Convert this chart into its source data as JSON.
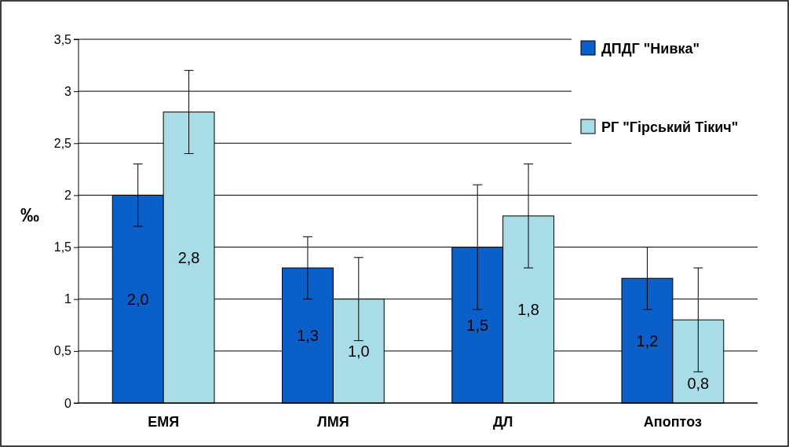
{
  "chart_data": {
    "type": "bar",
    "ylabel": "‰",
    "categories": [
      "ЕМЯ",
      "ЛМЯ",
      "ДЛ",
      "Апоптоз"
    ],
    "series": [
      {
        "name": "ДПДГ \"Нивка\"",
        "color": "#0a5fc8",
        "values": [
          2.0,
          1.3,
          1.5,
          1.2
        ],
        "errors": [
          0.3,
          0.3,
          0.6,
          0.3
        ],
        "value_labels": [
          "2,0",
          "1,3",
          "1,5",
          "1,2"
        ]
      },
      {
        "name": "РГ \"Гірський Тікич\"",
        "color": "#a8dce6",
        "values": [
          2.8,
          1.0,
          1.8,
          0.8
        ],
        "errors": [
          0.4,
          0.4,
          0.5,
          0.5
        ],
        "value_labels": [
          "2,8",
          "1,0",
          "1,8",
          "0,8"
        ]
      }
    ],
    "ylim": [
      0,
      3.5
    ],
    "yticks": [
      0,
      {
        "value": 0.5,
        "label": "0,5"
      },
      1,
      {
        "value": 1.5,
        "label": "1,5"
      },
      2,
      {
        "value": 2.5,
        "label": "2,5"
      },
      3,
      {
        "value": 3.5,
        "label": "3,5"
      }
    ],
    "grid": "y",
    "legend": "top right"
  }
}
